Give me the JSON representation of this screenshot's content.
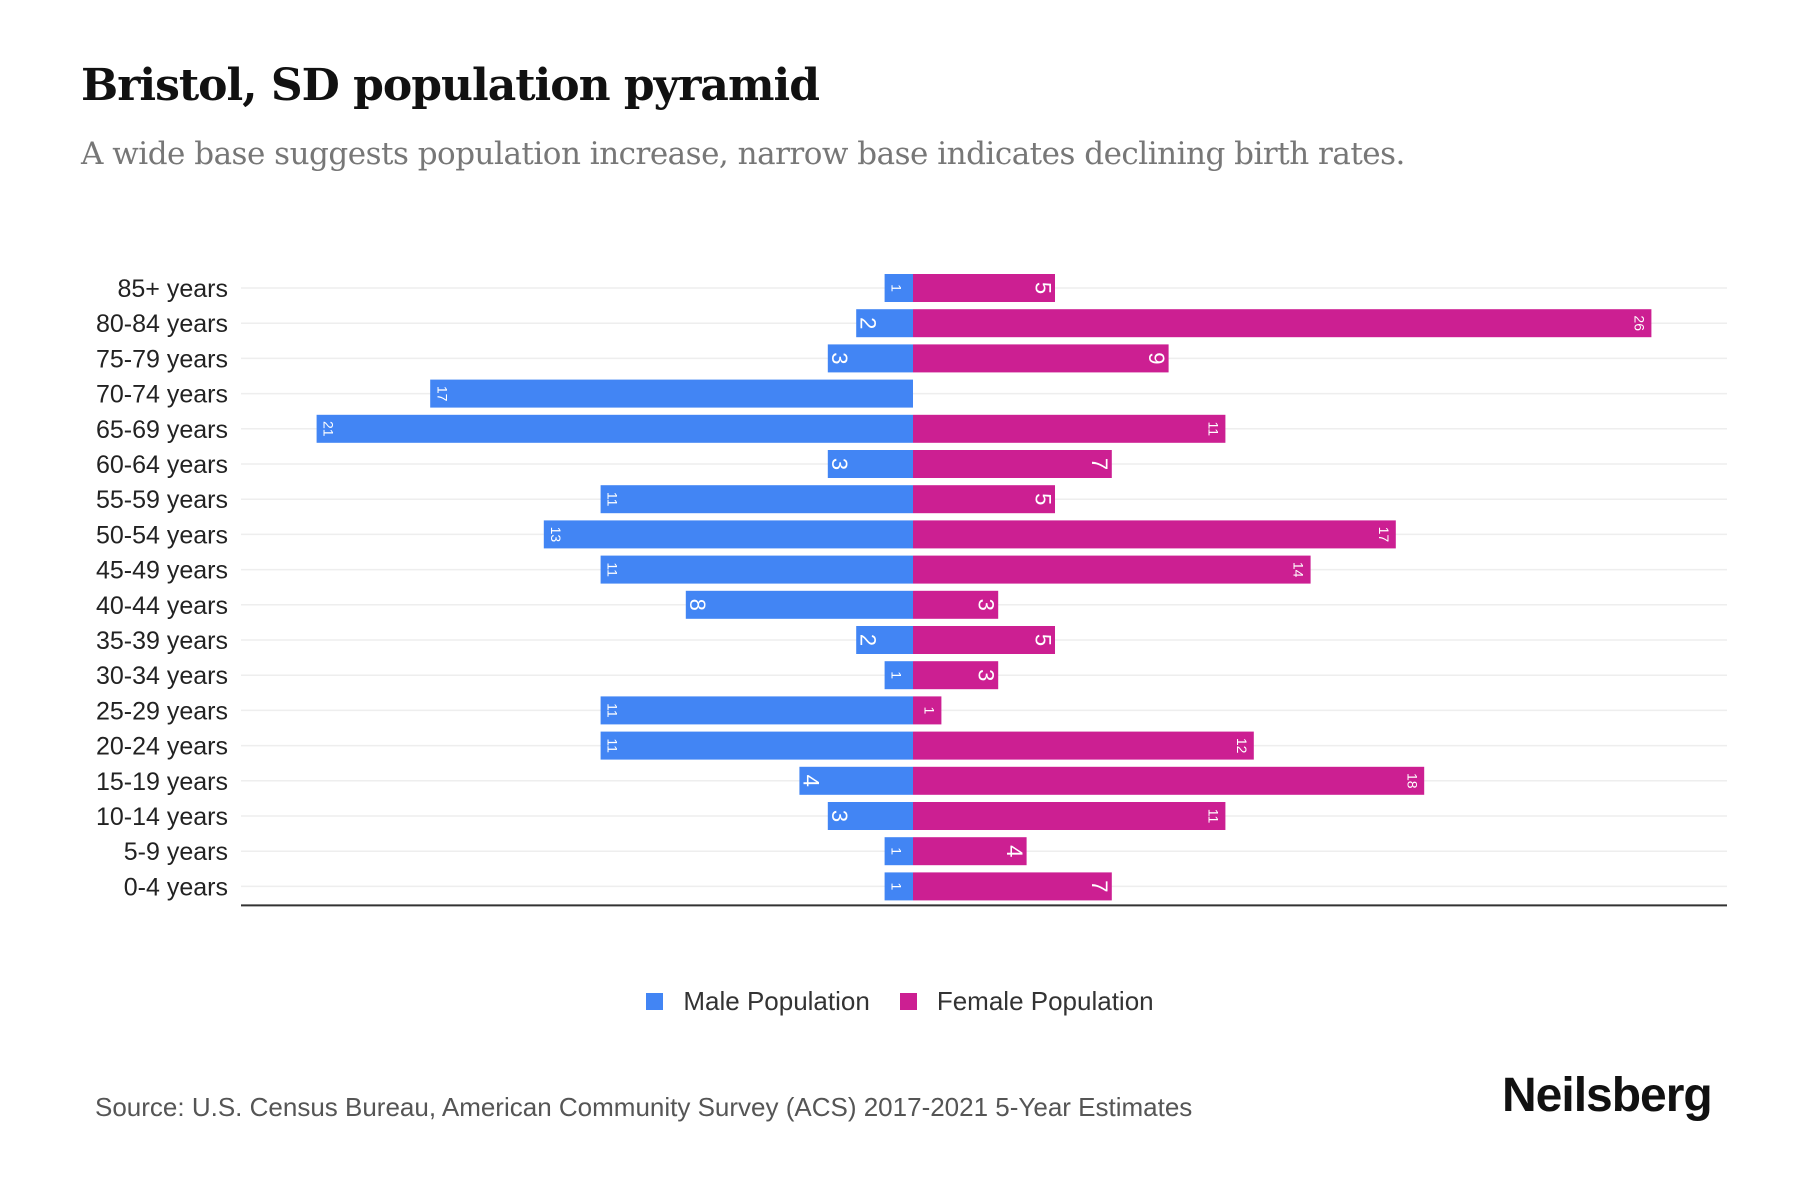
{
  "chart_data": {
    "type": "bar",
    "orientation": "horizontal-pyramid",
    "title": "Bristol, SD population pyramid",
    "subtitle": "A wide base suggests population increase, narrow base indicates declining birth rates.",
    "categories": [
      "85+ years",
      "80-84 years",
      "75-79 years",
      "70-74 years",
      "65-69 years",
      "60-64 years",
      "55-59 years",
      "50-54 years",
      "45-49 years",
      "40-44 years",
      "35-39 years",
      "30-34 years",
      "25-29 years",
      "20-24 years",
      "15-19 years",
      "10-14 years",
      "5-9 years",
      "0-4 years"
    ],
    "series": [
      {
        "name": "Male Population",
        "color": "#4285f4",
        "values": [
          1,
          2,
          3,
          17,
          21,
          3,
          11,
          13,
          11,
          8,
          2,
          1,
          11,
          11,
          4,
          3,
          1,
          1
        ]
      },
      {
        "name": "Female Population",
        "color": "#cc1f92",
        "values": [
          5,
          26,
          9,
          0,
          11,
          7,
          5,
          17,
          14,
          3,
          5,
          3,
          1,
          12,
          18,
          11,
          4,
          7
        ]
      }
    ],
    "xlim": [
      -23.5,
      29
    ],
    "grid": true,
    "legend_position": "bottom-center"
  },
  "source": "Source: U.S. Census Bureau, American Community Survey (ACS) 2017-2021 5-Year Estimates",
  "logo": "Neilsberg"
}
